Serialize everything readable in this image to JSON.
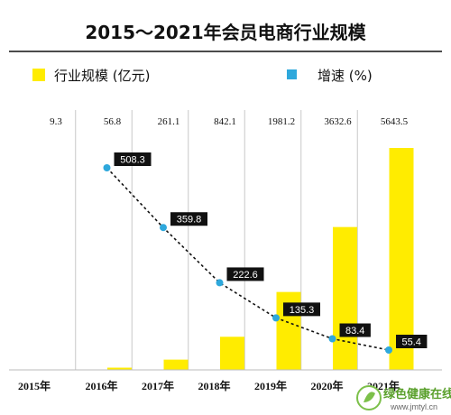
{
  "chart_data": {
    "type": "bar",
    "title": "2015～2021年会员电商行业规模",
    "categories": [
      "2015年",
      "2016年",
      "2017年",
      "2018年",
      "2019年",
      "2020年",
      "2021年"
    ],
    "series": [
      {
        "name": "行业规模 (亿元)",
        "type": "bar",
        "values": [
          9.3,
          56.8,
          261.1,
          842.1,
          1981.2,
          3632.6,
          5643.5
        ],
        "value_labels": [
          "9.3",
          "56.8",
          "261.1",
          "842.1",
          "1981.2",
          "3632.6",
          "5643.5"
        ]
      },
      {
        "name": "增速 (%)",
        "type": "line",
        "values": [
          null,
          508.3,
          359.8,
          222.6,
          135.3,
          83.4,
          55.4
        ],
        "value_labels": [
          "",
          "508.3",
          "359.8",
          "222.6",
          "135.3",
          "83.4",
          "55.4"
        ]
      }
    ],
    "ylim": [
      0,
      6000
    ],
    "ylim_growth": [
      0,
      650
    ],
    "grid": "vertical",
    "legend": "top",
    "colors": {
      "bar": "#ffec00",
      "line_marker": "#2ea8dc",
      "line": "#111111",
      "label_box": "#111111"
    }
  },
  "watermark": {
    "text": "绿色健康在线",
    "url": "www.jmtyl.cn"
  }
}
